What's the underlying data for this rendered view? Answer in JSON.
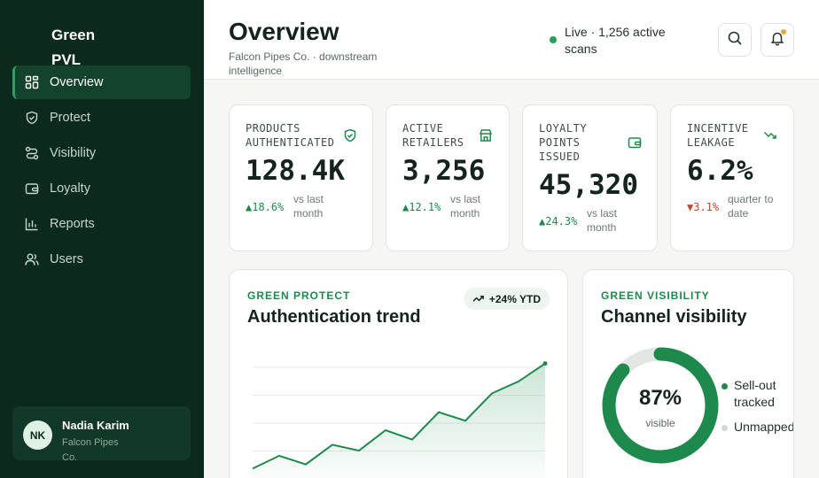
{
  "sidebar": {
    "brand": "Green PVL",
    "nav": [
      {
        "label": "Overview",
        "icon": "grid-icon",
        "active": true
      },
      {
        "label": "Protect",
        "icon": "shield-icon",
        "active": false
      },
      {
        "label": "Visibility",
        "icon": "route-icon",
        "active": false
      },
      {
        "label": "Loyalty",
        "icon": "wallet-icon",
        "active": false
      },
      {
        "label": "Reports",
        "icon": "bar-chart-icon",
        "active": false
      },
      {
        "label": "Users",
        "icon": "users-icon",
        "active": false
      }
    ],
    "user": {
      "initials": "NK",
      "name": "Nadia Karim",
      "org": "Falcon Pipes Co."
    }
  },
  "header": {
    "title": "Overview",
    "subtitle": "Falcon Pipes Co. · downstream intelligence",
    "status": "Live · 1,256 active scans",
    "search_icon": "search-icon",
    "notifications_icon": "bell-icon"
  },
  "stats": [
    {
      "label": "PRODUCTS AUTHENTICATED",
      "icon": "shield-check-icon",
      "value": "128.4K",
      "delta": "▲18.6%",
      "direction": "up",
      "period": "vs last month"
    },
    {
      "label": "ACTIVE RETAILERS",
      "icon": "store-icon",
      "value": "3,256",
      "delta": "▲12.1%",
      "direction": "up",
      "period": "vs last month"
    },
    {
      "label": "LOYALTY POINTS ISSUED",
      "icon": "wallet-icon",
      "value": "45,320",
      "delta": "▲24.3%",
      "direction": "up",
      "period": "vs last month"
    },
    {
      "label": "INCENTIVE LEAKAGE",
      "icon": "trend-down-icon",
      "value": "6.2%",
      "delta": "▼3.1%",
      "direction": "down",
      "period": "quarter to date"
    }
  ],
  "trend_panel": {
    "eyebrow": "GREEN PROTECT",
    "title": "Authentication trend",
    "badge": "+24% YTD",
    "chart_data": {
      "type": "area",
      "x": [
        1,
        2,
        3,
        4,
        5,
        6,
        7,
        8,
        9,
        10,
        11,
        12
      ],
      "values": [
        12,
        27,
        17,
        40,
        33,
        57,
        46,
        78,
        68,
        100,
        114,
        135
      ],
      "ylim": [
        0,
        145
      ],
      "grid": true,
      "color": "#1d8a4c"
    }
  },
  "visibility_panel": {
    "eyebrow": "GREEN VISIBILITY",
    "title": "Channel visibility",
    "donut_value": "87%",
    "donut_label": "visible",
    "chart_data": {
      "type": "pie",
      "values": [
        87,
        13
      ],
      "colors": [
        "#1d8a4c",
        "#e3e7e3"
      ]
    },
    "legend": [
      {
        "label": "Sell-out tracked",
        "color": "#1d8a4c"
      },
      {
        "label": "Unmapped",
        "color": "#d5d9d5"
      }
    ]
  }
}
